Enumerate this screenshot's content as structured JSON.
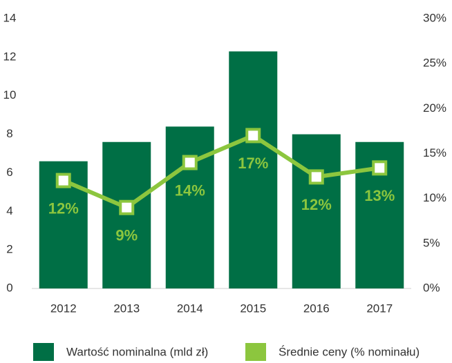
{
  "chart_data": {
    "type": "bar",
    "categories": [
      "2012",
      "2013",
      "2014",
      "2015",
      "2016",
      "2017"
    ],
    "series": [
      {
        "name": "Wartość nominalna (mld zł)",
        "color": "#006f45",
        "type": "bar",
        "values": [
          6.6,
          7.6,
          8.4,
          12.3,
          8.0,
          7.6
        ]
      },
      {
        "name": "Średnie ceny (% nominału)",
        "color": "#8cc63e",
        "type": "line",
        "axis": "y2",
        "values": [
          12,
          9,
          14,
          17,
          12.4,
          13.4
        ],
        "value_labels": [
          "12%",
          "9%",
          "14%",
          "17%",
          "12%",
          "13%"
        ]
      }
    ],
    "ylim": [
      0,
      14
    ],
    "yticks": [
      0,
      2,
      4,
      6,
      8,
      10,
      12,
      14
    ],
    "y2lim": [
      0,
      30
    ],
    "y2ticks": [
      {
        "value": 0,
        "label": "0%"
      },
      {
        "value": 5,
        "label": "5%"
      },
      {
        "value": 10,
        "label": "10%"
      },
      {
        "value": 15,
        "label": "15%"
      },
      {
        "value": 20,
        "label": "20%"
      },
      {
        "value": 25,
        "label": "25%"
      },
      {
        "value": 30,
        "label": "30%"
      }
    ],
    "legend": "bottom"
  }
}
